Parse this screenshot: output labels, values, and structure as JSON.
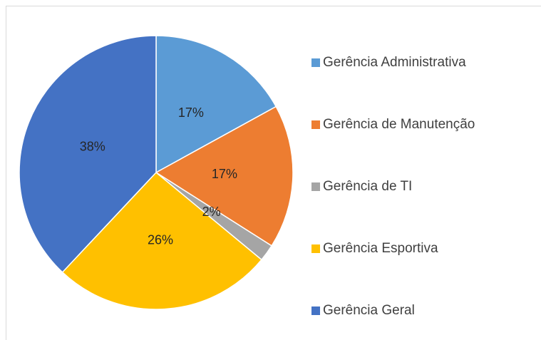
{
  "chart_data": {
    "type": "pie",
    "categories": [
      "Gerência Administrativa",
      "Gerência de Manutenção",
      "Gerência de TI",
      "Gerência Esportiva",
      "Gerência Geral"
    ],
    "values": [
      17,
      17,
      2,
      26,
      38
    ],
    "value_labels": [
      "17%",
      "17%",
      "2%",
      "26%",
      "38%"
    ],
    "colors": [
      "#5b9bd5",
      "#ed7d31",
      "#a5a5a5",
      "#ffc000",
      "#4472c4"
    ],
    "legend": "right"
  }
}
